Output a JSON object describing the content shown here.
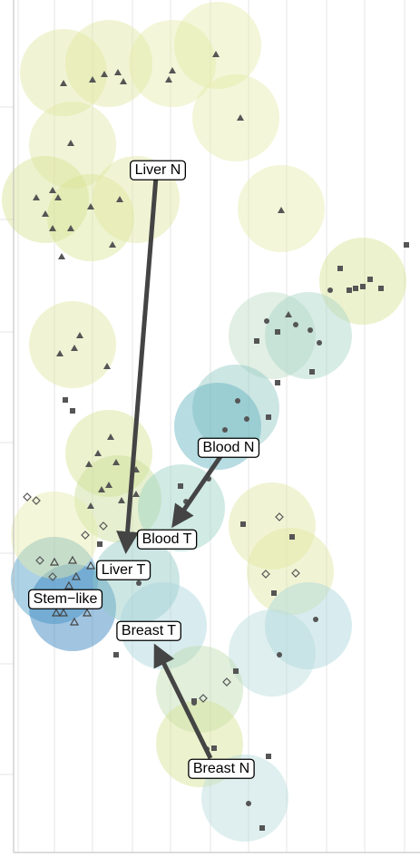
{
  "labels": [
    "Liver N",
    "Blood N",
    "Blood T",
    "Liver T",
    "Stem−like",
    "Breast T",
    "Breast N"
  ]
}
